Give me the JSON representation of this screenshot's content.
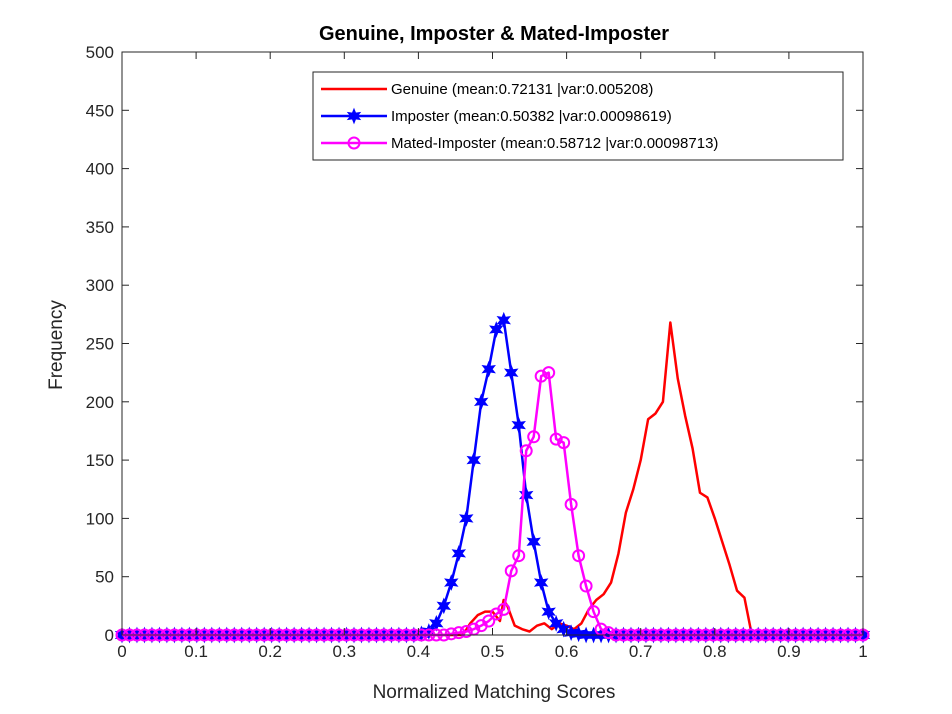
{
  "chart_data": {
    "type": "line",
    "title": "Genuine, Imposter & Mated-Imposter",
    "xlabel": "Normalized Matching Scores",
    "ylabel": "Frequency",
    "xlim": [
      0,
      1
    ],
    "ylim": [
      0,
      500
    ],
    "xticks": [
      0,
      0.1,
      0.2,
      0.3,
      0.4,
      0.5,
      0.6,
      0.7,
      0.8,
      0.9,
      1
    ],
    "xtick_labels": [
      "0",
      "0.1",
      "0.2",
      "0.3",
      "0.4",
      "0.5",
      "0.6",
      "0.7",
      "0.8",
      "0.9",
      "1"
    ],
    "yticks": [
      0,
      50,
      100,
      150,
      200,
      250,
      300,
      350,
      400,
      450,
      500
    ],
    "ytick_labels": [
      "0",
      "50",
      "100",
      "150",
      "200",
      "250",
      "300",
      "350",
      "400",
      "450",
      "500"
    ],
    "grid": false,
    "legend_position": "top-right",
    "series": [
      {
        "name": "Genuine (mean:0.72131 |var:0.005208)",
        "color": "#ff0000",
        "marker": "none",
        "x": [
          0.37,
          0.46,
          0.47,
          0.48,
          0.49,
          0.5,
          0.51,
          0.515,
          0.52,
          0.53,
          0.54,
          0.55,
          0.56,
          0.57,
          0.58,
          0.59,
          0.6,
          0.61,
          0.62,
          0.63,
          0.64,
          0.65,
          0.66,
          0.67,
          0.68,
          0.69,
          0.7,
          0.71,
          0.72,
          0.73,
          0.74,
          0.75,
          0.76,
          0.77,
          0.78,
          0.79,
          0.8,
          0.81,
          0.82,
          0.83,
          0.84,
          0.85
        ],
        "y": [
          0,
          0,
          10,
          17,
          20,
          20,
          12,
          30,
          25,
          8,
          5,
          3,
          8,
          10,
          5,
          10,
          8,
          5,
          10,
          22,
          30,
          35,
          45,
          70,
          105,
          125,
          150,
          185,
          190,
          200,
          268,
          220,
          188,
          160,
          122,
          118,
          100,
          80,
          60,
          38,
          32,
          0
        ]
      },
      {
        "name": "Imposter (mean:0.50382 |var:0.00098619)",
        "color": "#0000ff",
        "marker": "star",
        "x": [
          0,
          0.0101,
          0.0202,
          0.0303,
          0.0404,
          0.0505,
          0.0606,
          0.0707,
          0.0808,
          0.0909,
          0.101,
          0.1111,
          0.1212,
          0.1313,
          0.1414,
          0.1515,
          0.1616,
          0.1717,
          0.1818,
          0.1919,
          0.202,
          0.2121,
          0.2222,
          0.2323,
          0.2424,
          0.2525,
          0.2626,
          0.2727,
          0.2828,
          0.2929,
          0.303,
          0.3131,
          0.3232,
          0.3333,
          0.3434,
          0.3535,
          0.3636,
          0.3737,
          0.3838,
          0.3939,
          0.404,
          0.4141,
          0.4242,
          0.4343,
          0.4444,
          0.4545,
          0.4646,
          0.4747,
          0.4848,
          0.4949,
          0.5051,
          0.5152,
          0.5253,
          0.5354,
          0.5455,
          0.5556,
          0.5657,
          0.5758,
          0.5859,
          0.596,
          0.6061,
          0.6162,
          0.6263,
          0.6364,
          0.6465,
          0.6566,
          0.6667,
          0.6768,
          0.6869,
          0.697,
          0.7071,
          0.7172,
          0.7273,
          0.7374,
          0.7475,
          0.7576,
          0.7677,
          0.7778,
          0.7879,
          0.798,
          0.8081,
          0.8182,
          0.8283,
          0.8384,
          0.8485,
          0.8586,
          0.8687,
          0.8788,
          0.8889,
          0.899,
          0.9091,
          0.9192,
          0.9293,
          0.9394,
          0.9495,
          0.9596,
          0.9697,
          0.9798,
          0.9899,
          1.0
        ],
        "y": [
          0,
          0,
          0,
          0,
          0,
          0,
          0,
          0,
          0,
          0,
          0,
          0,
          0,
          0,
          0,
          0,
          0,
          0,
          0,
          0,
          0,
          0,
          0,
          0,
          0,
          0,
          0,
          0,
          0,
          0,
          0,
          0,
          0,
          0,
          0,
          0,
          0,
          0,
          0,
          0,
          1,
          3,
          10,
          25,
          45,
          70,
          100,
          150,
          200,
          228,
          262,
          270,
          225,
          180,
          120,
          80,
          45,
          20,
          10,
          5,
          2,
          1,
          0,
          0,
          0,
          0,
          0,
          0,
          0,
          0,
          0,
          0,
          0,
          0,
          0,
          0,
          0,
          0,
          0,
          0,
          0,
          0,
          0,
          0,
          0,
          0,
          0,
          0,
          0,
          0,
          0,
          0,
          0,
          0,
          0,
          0,
          0,
          0,
          0,
          0
        ]
      },
      {
        "name": "Mated-Imposter (mean:0.58712 |var:0.00098713)",
        "color": "#ff00ff",
        "marker": "circle",
        "x": [
          0,
          0.0101,
          0.0202,
          0.0303,
          0.0404,
          0.0505,
          0.0606,
          0.0707,
          0.0808,
          0.0909,
          0.101,
          0.1111,
          0.1212,
          0.1313,
          0.1414,
          0.1515,
          0.1616,
          0.1717,
          0.1818,
          0.1919,
          0.202,
          0.2121,
          0.2222,
          0.2323,
          0.2424,
          0.2525,
          0.2626,
          0.2727,
          0.2828,
          0.2929,
          0.303,
          0.3131,
          0.3232,
          0.3333,
          0.3434,
          0.3535,
          0.3636,
          0.3737,
          0.3838,
          0.3939,
          0.404,
          0.4141,
          0.4242,
          0.4343,
          0.4444,
          0.4545,
          0.4646,
          0.4747,
          0.4848,
          0.4949,
          0.5051,
          0.5152,
          0.5253,
          0.5354,
          0.5455,
          0.5556,
          0.5657,
          0.5758,
          0.5859,
          0.596,
          0.6061,
          0.6162,
          0.6263,
          0.6364,
          0.6465,
          0.6566,
          0.6667,
          0.6768,
          0.6869,
          0.697,
          0.7071,
          0.7172,
          0.7273,
          0.7374,
          0.7475,
          0.7576,
          0.7677,
          0.7778,
          0.7879,
          0.798,
          0.8081,
          0.8182,
          0.8283,
          0.8384,
          0.8485,
          0.8586,
          0.8687,
          0.8788,
          0.8889,
          0.899,
          0.9091,
          0.9192,
          0.9293,
          0.9394,
          0.9495,
          0.9596,
          0.9697,
          0.9798,
          0.9899,
          1.0
        ],
        "y": [
          0,
          0,
          0,
          0,
          0,
          0,
          0,
          0,
          0,
          0,
          0,
          0,
          0,
          0,
          0,
          0,
          0,
          0,
          0,
          0,
          0,
          0,
          0,
          0,
          0,
          0,
          0,
          0,
          0,
          0,
          0,
          0,
          0,
          0,
          0,
          0,
          0,
          0,
          0,
          0,
          0,
          0,
          0,
          0,
          1,
          2,
          3,
          5,
          8,
          12,
          18,
          22,
          55,
          68,
          158,
          170,
          222,
          225,
          168,
          165,
          112,
          68,
          42,
          20,
          5,
          2,
          0,
          0,
          0,
          0,
          0,
          0,
          0,
          0,
          0,
          0,
          0,
          0,
          0,
          0,
          0,
          0,
          0,
          0,
          0,
          0,
          0,
          0,
          0,
          0,
          0,
          0,
          0,
          0,
          0,
          0,
          0,
          0,
          0,
          0
        ]
      }
    ]
  }
}
